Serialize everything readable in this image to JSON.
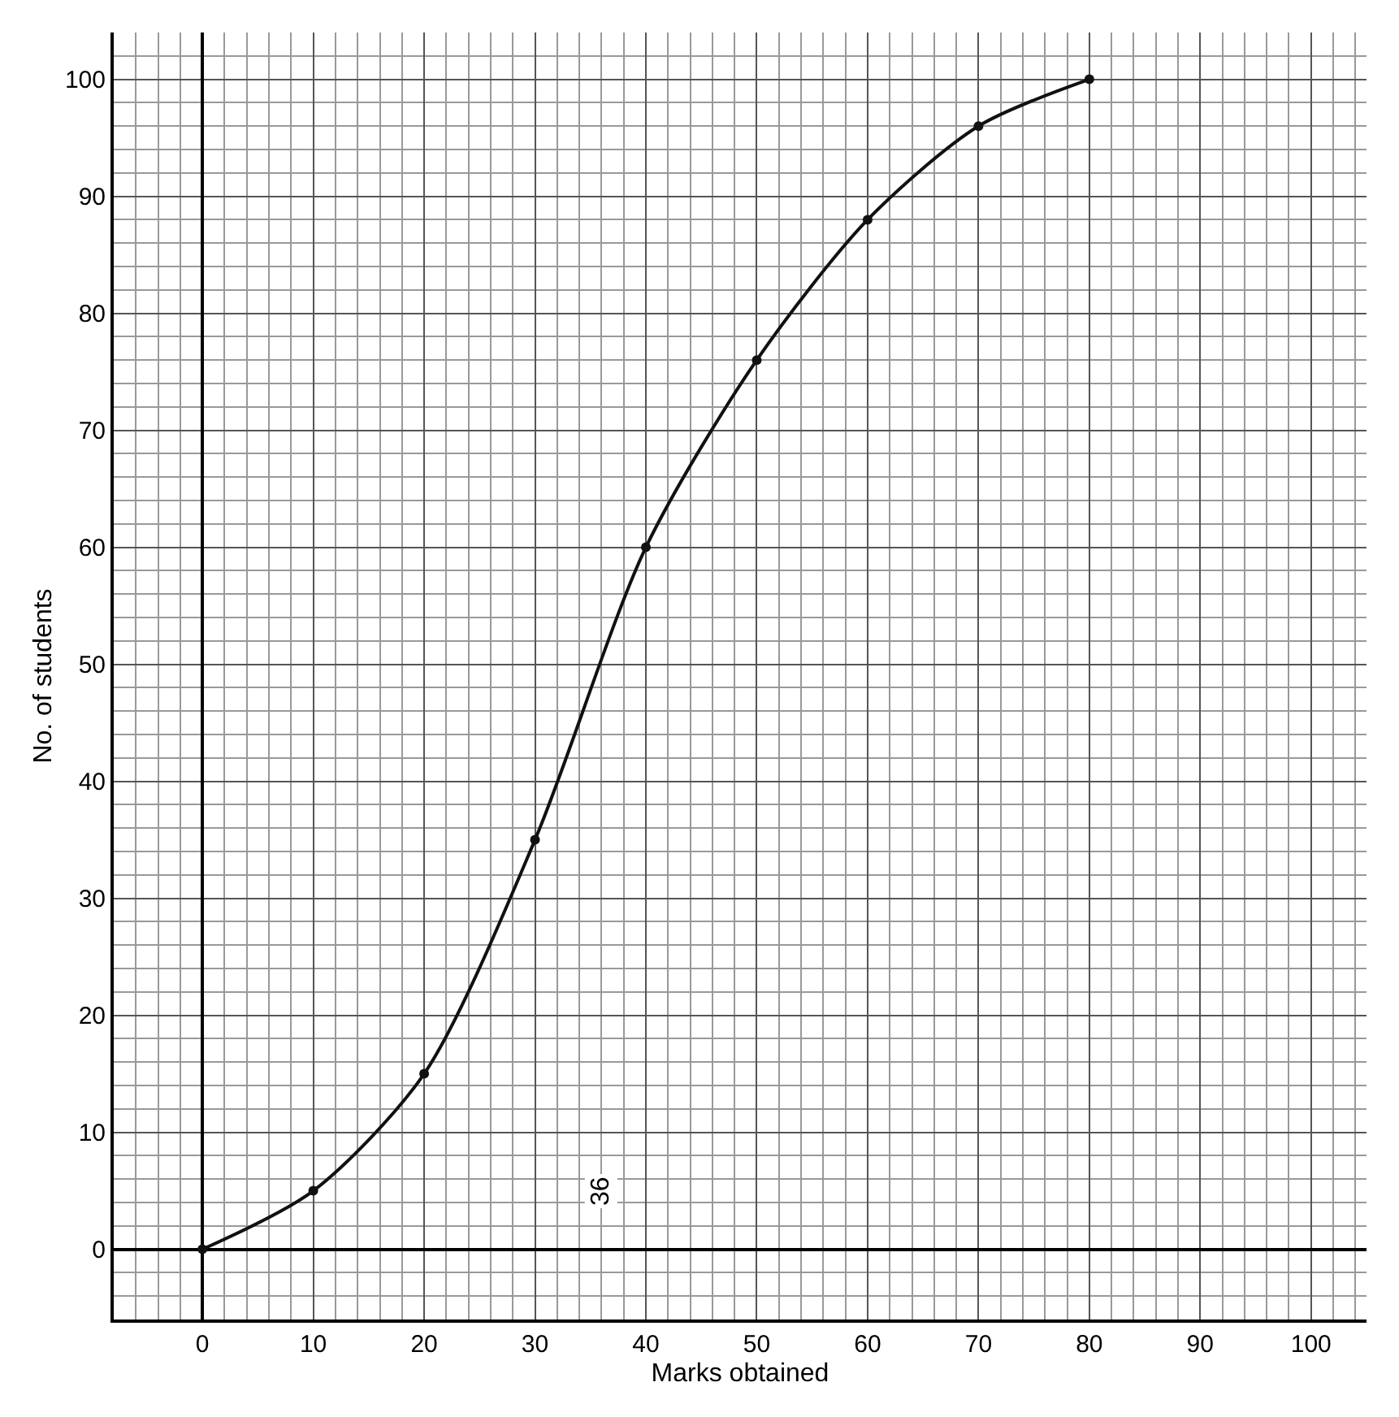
{
  "chart_data": {
    "type": "line",
    "xlabel": "Marks obtained",
    "ylabel": "No. of students",
    "x": [
      0,
      10,
      20,
      30,
      40,
      50,
      60,
      70,
      80
    ],
    "series": [
      {
        "color": "#111111",
        "values": [
          0,
          5,
          15,
          35,
          60,
          76,
          88,
          96,
          100
        ]
      }
    ],
    "xlim": [
      -8,
      105
    ],
    "ylim": [
      -6,
      104
    ],
    "xticks": [
      0,
      10,
      20,
      30,
      40,
      50,
      60,
      70,
      80,
      90,
      100
    ],
    "yticks": [
      0,
      10,
      20,
      30,
      40,
      50,
      60,
      70,
      80,
      90,
      100
    ],
    "annotations": [
      {
        "text": "36",
        "x": 36,
        "y": 5
      }
    ],
    "grid": true,
    "marker": "circle",
    "line_style": "solid"
  }
}
